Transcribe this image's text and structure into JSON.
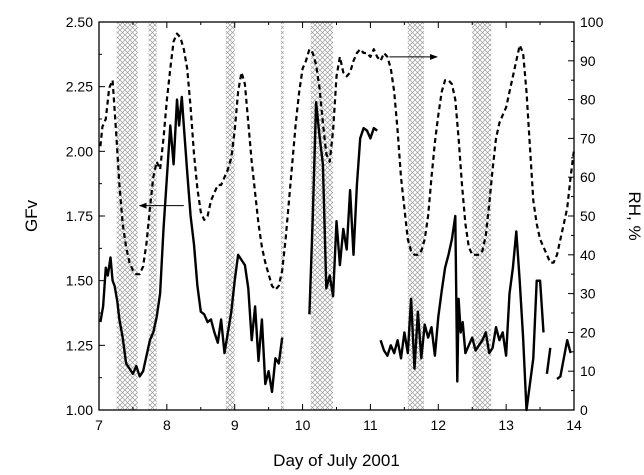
{
  "chart_data": {
    "type": "line",
    "xlabel": "Day of July 2001",
    "ylabel_left": "GFv",
    "ylabel_right": "RH, %",
    "xlim": [
      7,
      14
    ],
    "ylim_left": [
      1.0,
      2.5
    ],
    "ylim_right": [
      0,
      100
    ],
    "x_ticks": [
      "7",
      "8",
      "9",
      "10",
      "11",
      "12",
      "13",
      "14"
    ],
    "y_ticks_left": [
      "1.00",
      "1.25",
      "1.50",
      "1.75",
      "2.00",
      "2.25",
      "2.50"
    ],
    "y_ticks_right": [
      "0",
      "10",
      "20",
      "30",
      "40",
      "50",
      "60",
      "70",
      "80",
      "90",
      "100"
    ],
    "grid": false,
    "shaded_intervals": [
      [
        7.26,
        7.57
      ],
      [
        7.73,
        7.85
      ],
      [
        8.87,
        9.0
      ],
      [
        9.68,
        9.72
      ],
      [
        10.12,
        10.45
      ],
      [
        11.55,
        11.79
      ],
      [
        12.5,
        12.78
      ]
    ],
    "series": [
      {
        "axis": "left",
        "style": "solid",
        "x": [
          7.02,
          7.06,
          7.1,
          7.13,
          7.17,
          7.2,
          7.23,
          7.27,
          7.3,
          7.35,
          7.4,
          7.45,
          7.5,
          7.55,
          7.6,
          7.65,
          7.7,
          7.75,
          7.8,
          7.85,
          7.9,
          7.95,
          8.0,
          8.05,
          8.1,
          8.15,
          8.18,
          8.22,
          8.25,
          8.3,
          8.35,
          8.4,
          8.45,
          8.5,
          8.55,
          8.6,
          8.65,
          8.7,
          8.75,
          8.8,
          8.85,
          8.9,
          8.95,
          9.0,
          9.05,
          9.1,
          9.15,
          9.2,
          9.25,
          9.3,
          9.35,
          9.4,
          9.45,
          9.5,
          9.55,
          9.6,
          9.65,
          9.7
        ],
        "y": [
          1.34,
          1.4,
          1.55,
          1.52,
          1.59,
          1.5,
          1.48,
          1.42,
          1.35,
          1.28,
          1.18,
          1.16,
          1.14,
          1.17,
          1.13,
          1.15,
          1.21,
          1.27,
          1.3,
          1.36,
          1.45,
          1.7,
          1.9,
          2.1,
          1.95,
          2.2,
          2.1,
          2.21,
          2.1,
          1.92,
          1.75,
          1.64,
          1.48,
          1.38,
          1.37,
          1.34,
          1.35,
          1.3,
          1.26,
          1.35,
          1.22,
          1.3,
          1.38,
          1.5,
          1.6,
          1.58,
          1.56,
          1.47,
          1.27,
          1.4,
          1.19,
          1.35,
          1.1,
          1.15,
          1.07,
          1.2,
          1.18,
          1.28
        ]
      },
      {
        "axis": "left",
        "style": "solid",
        "x": [
          10.1,
          10.15,
          10.2,
          10.25,
          10.3,
          10.35,
          10.4,
          10.45,
          10.5,
          10.55,
          10.6,
          10.65,
          10.7,
          10.75,
          10.8,
          10.85,
          10.9,
          10.95,
          11.0,
          11.05,
          11.1
        ],
        "y": [
          1.37,
          1.75,
          2.19,
          2.06,
          1.95,
          1.47,
          1.52,
          1.44,
          1.73,
          1.56,
          1.7,
          1.62,
          1.85,
          1.6,
          1.87,
          2.05,
          2.09,
          2.08,
          2.05,
          2.09,
          2.08
        ]
      },
      {
        "axis": "left",
        "style": "solid",
        "x": [
          11.15,
          11.2,
          11.25,
          11.3,
          11.35,
          11.4,
          11.45,
          11.5,
          11.55,
          11.6,
          11.65,
          11.7,
          11.75,
          11.8,
          11.85,
          11.9,
          11.95,
          12.0,
          12.05,
          12.1,
          12.15,
          12.2,
          12.25,
          12.28,
          12.3,
          12.33,
          12.36,
          12.4,
          12.45,
          12.5,
          12.55,
          12.6,
          12.65,
          12.7,
          12.75,
          12.8,
          12.85,
          12.9,
          12.95,
          13.0,
          13.05,
          13.1,
          13.15,
          13.2,
          13.25,
          13.3,
          13.35,
          13.4,
          13.45,
          13.5,
          13.55
        ],
        "y": [
          1.27,
          1.23,
          1.21,
          1.25,
          1.22,
          1.27,
          1.2,
          1.3,
          1.22,
          1.43,
          1.16,
          1.38,
          1.2,
          1.33,
          1.28,
          1.32,
          1.21,
          1.36,
          1.46,
          1.55,
          1.6,
          1.66,
          1.75,
          1.11,
          1.43,
          1.3,
          1.34,
          1.22,
          1.25,
          1.28,
          1.23,
          1.25,
          1.27,
          1.3,
          1.22,
          1.24,
          1.32,
          1.27,
          1.3,
          1.21,
          1.45,
          1.55,
          1.69,
          1.5,
          1.28,
          1.0,
          1.1,
          1.2,
          1.5,
          1.5,
          1.3
        ]
      },
      {
        "axis": "left",
        "style": "solid",
        "x": [
          13.6,
          13.65
        ],
        "y": [
          1.14,
          1.24
        ]
      },
      {
        "axis": "left",
        "style": "solid",
        "x": [
          13.75,
          13.8,
          13.85,
          13.9,
          13.95
        ],
        "y": [
          1.12,
          1.13,
          1.2,
          1.27,
          1.22
        ]
      },
      {
        "axis": "right",
        "style": "dashed",
        "x": [
          7.02,
          7.05,
          7.1,
          7.15,
          7.2,
          7.25,
          7.3,
          7.35,
          7.4,
          7.45,
          7.5,
          7.55,
          7.6,
          7.65,
          7.7,
          7.75,
          7.8,
          7.85,
          7.9,
          7.95,
          8.0,
          8.05,
          8.1,
          8.15,
          8.2,
          8.25,
          8.3,
          8.35,
          8.4,
          8.45,
          8.5,
          8.55,
          8.6,
          8.65,
          8.7,
          8.75,
          8.8,
          8.85,
          8.9,
          8.95,
          9.0,
          9.05,
          9.1,
          9.15,
          9.2,
          9.25,
          9.3,
          9.35,
          9.4,
          9.45,
          9.5,
          9.55,
          9.6,
          9.65,
          9.7,
          9.75,
          9.8,
          9.85,
          9.9,
          9.95,
          10.0,
          10.05,
          10.1,
          10.15,
          10.2,
          10.25,
          10.3,
          10.35,
          10.4,
          10.45,
          10.5,
          10.55,
          10.6,
          10.65,
          10.7,
          10.75,
          10.8,
          10.85,
          10.9,
          10.95,
          11.0,
          11.05,
          11.1,
          11.15,
          11.2,
          11.25,
          11.3,
          11.35,
          11.4,
          11.45,
          11.5,
          11.55,
          11.6,
          11.65,
          11.7,
          11.75,
          11.8,
          11.85,
          11.9,
          11.95,
          12.0,
          12.05,
          12.1,
          12.15,
          12.2,
          12.25,
          12.3,
          12.35,
          12.4,
          12.45,
          12.5,
          12.55,
          12.6,
          12.65,
          12.7,
          12.75,
          12.8,
          12.85,
          12.9,
          12.95,
          13.0,
          13.05,
          13.1,
          13.15,
          13.2,
          13.25,
          13.3,
          13.35,
          13.4,
          13.45,
          13.5,
          13.55,
          13.6,
          13.65,
          13.7,
          13.75,
          13.8,
          13.85,
          13.9,
          13.95,
          14.0
        ],
        "y": [
          68,
          73,
          75,
          83,
          85,
          72,
          58,
          48,
          42,
          38,
          36,
          35,
          35,
          37,
          43,
          52,
          60,
          64,
          62,
          70,
          80,
          88,
          95,
          97,
          96,
          93,
          88,
          78,
          66,
          57,
          51,
          49,
          50,
          54,
          56,
          58,
          58,
          60,
          62,
          65,
          72,
          82,
          87,
          84,
          74,
          64,
          56,
          48,
          42,
          38,
          35,
          32,
          31,
          32,
          36,
          44,
          54,
          64,
          74,
          82,
          88,
          90,
          93,
          92,
          89,
          83,
          74,
          66,
          64,
          72,
          86,
          91,
          87,
          86,
          87,
          90,
          92,
          93,
          92,
          92,
          91,
          93,
          91,
          90,
          92,
          91,
          88,
          82,
          72,
          60,
          52,
          44,
          41,
          40,
          40,
          41,
          44,
          50,
          60,
          69,
          76,
          82,
          85,
          85,
          84,
          80,
          70,
          58,
          48,
          42,
          40,
          40,
          40,
          41,
          45,
          53,
          62,
          70,
          74,
          76,
          78,
          82,
          86,
          90,
          94,
          92,
          82,
          68,
          54,
          48,
          44,
          42,
          40,
          38,
          38,
          40,
          44,
          48,
          52,
          60,
          67
        ]
      }
    ],
    "annotations": [
      {
        "type": "arrow",
        "direction": "left",
        "x_from": 8.25,
        "x_to": 7.6,
        "y_left": 1.79
      },
      {
        "type": "arrow",
        "direction": "right",
        "x_from": 11.28,
        "x_to": 11.98,
        "y_right": 91
      }
    ]
  }
}
